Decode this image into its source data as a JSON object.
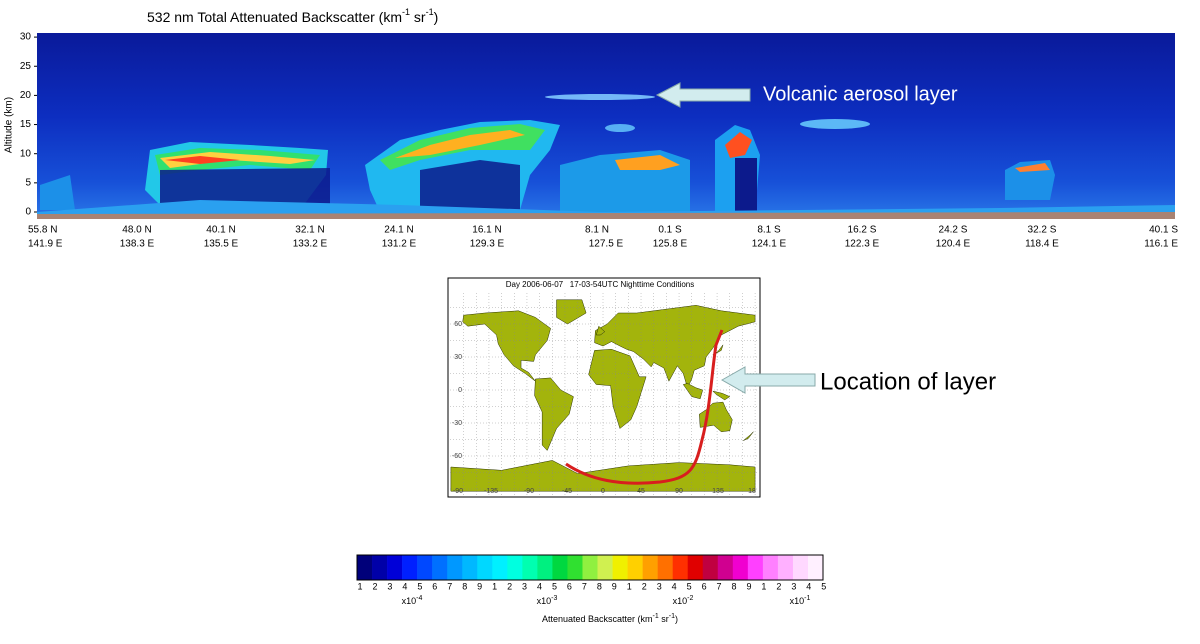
{
  "plot": {
    "title": {
      "text": "532 nm Total Attenuated Backscatter (km",
      "sup1": "-1",
      "mid": " sr",
      "sup2": "-1",
      "end": ")"
    },
    "y_axis_label": "Altitude (km)",
    "yticks": [
      0,
      5,
      10,
      15,
      20,
      25,
      30
    ],
    "xticks": [
      {
        "lat": "55.8 N",
        "lon": "141.9 E"
      },
      {
        "lat": "48.0 N",
        "lon": "138.3 E"
      },
      {
        "lat": "40.1 N",
        "lon": "135.5 E"
      },
      {
        "lat": "32.1 N",
        "lon": "133.2 E"
      },
      {
        "lat": "24.1 N",
        "lon": "131.2 E"
      },
      {
        "lat": "16.1 N",
        "lon": "129.3 E"
      },
      {
        "lat": "8.1 N",
        "lon": "127.5 E"
      },
      {
        "lat": "0.1 S",
        "lon": "125.8 E"
      },
      {
        "lat": "8.1 S",
        "lon": "124.1 E"
      },
      {
        "lat": "16.2 S",
        "lon": "122.3 E"
      },
      {
        "lat": "24.2 S",
        "lon": "120.4 E"
      },
      {
        "lat": "32.2 S",
        "lon": "118.4 E"
      },
      {
        "lat": "40.1 S",
        "lon": "116.1 E"
      }
    ]
  },
  "annotations": [
    "Volcanic aerosol layer",
    "Location of layer"
  ],
  "map": {
    "title": "Day 2006-06-07   17-03-54UTC Nighttime Conditions",
    "lat_ticks": [
      60,
      30,
      0,
      -30,
      -60
    ],
    "lon_ticks": [
      -90,
      -135,
      -90,
      -45,
      0,
      45,
      90,
      135,
      18
    ]
  },
  "colorbar": {
    "groups": [
      {
        "digits": [
          1,
          2,
          3,
          4,
          5,
          6,
          7,
          8,
          9
        ],
        "base": "x10",
        "power": "-4"
      },
      {
        "digits": [
          1,
          2,
          3,
          4,
          5,
          6,
          7,
          8,
          9
        ],
        "base": "x10",
        "power": "-3"
      },
      {
        "digits": [
          1,
          2,
          3,
          4,
          5,
          6,
          7,
          8,
          9
        ],
        "base": "x10",
        "power": "-2"
      },
      {
        "digits": [
          1,
          2,
          3,
          4,
          5
        ],
        "base": "x10",
        "power": "-1"
      }
    ],
    "label": {
      "text": "Attenuated Backscatter (km",
      "sup1": "-1",
      "mid": " sr",
      "sup2": "-1",
      "end": ")"
    }
  }
}
